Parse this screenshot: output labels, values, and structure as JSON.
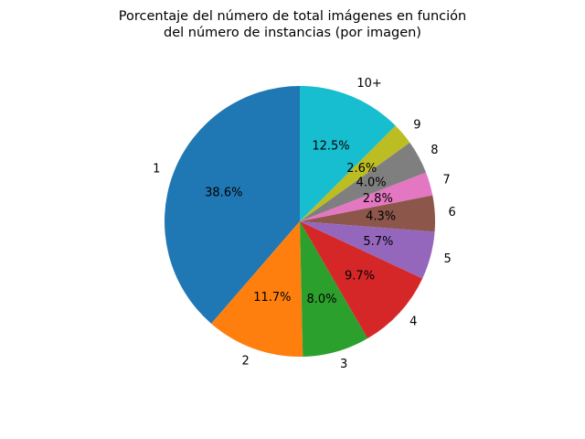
{
  "chart_data": {
    "type": "pie",
    "title_lines": [
      "Porcentaje del número de total imágenes en función",
      "del número de instancias (por imagen)"
    ],
    "categories": [
      "1",
      "2",
      "3",
      "4",
      "5",
      "6",
      "7",
      "8",
      "9",
      "10+"
    ],
    "values": [
      38.6,
      11.7,
      8.0,
      9.7,
      5.7,
      4.3,
      2.8,
      4.0,
      2.6,
      12.5
    ],
    "value_labels": [
      "38.6%",
      "11.7%",
      "8.0%",
      "9.7%",
      "5.7%",
      "4.3%",
      "2.8%",
      "4.0%",
      "2.6%",
      "12.5%"
    ],
    "colors": [
      "#1f77b4",
      "#ff7f0e",
      "#2ca02c",
      "#d62728",
      "#9467bd",
      "#8c564b",
      "#e377c2",
      "#7f7f7f",
      "#bcbd22",
      "#17becf"
    ],
    "start_angle_deg": 90,
    "direction": "counterclockwise",
    "legend": "none"
  }
}
